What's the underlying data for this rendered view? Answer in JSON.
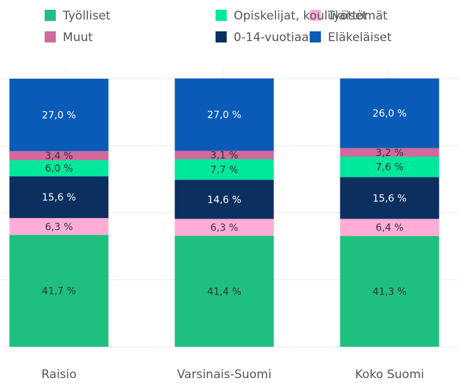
{
  "chart_data": {
    "type": "stacked_bar",
    "categories": [
      "Raisio",
      "Varsinais-Suomi",
      "Koko Suomi"
    ],
    "series": [
      {
        "name": "Työlliset",
        "color": "#1fc07f",
        "values": [
          41.7,
          41.4,
          41.3
        ],
        "value_labels": [
          "41,7 %",
          "41,4 %",
          "41,3 %"
        ]
      },
      {
        "name": "Työttömät",
        "color": "#ffadd6",
        "values": [
          6.3,
          6.3,
          6.4
        ],
        "value_labels": [
          "6,3 %",
          "6,3 %",
          "6,4 %"
        ]
      },
      {
        "name": "0-14-vuotiaat",
        "color": "#0b2f5f",
        "values": [
          15.6,
          14.6,
          15.6
        ],
        "value_labels": [
          "15,6 %",
          "14,6 %",
          "15,6 %"
        ]
      },
      {
        "name": "Opiskelijat, koululaiset",
        "color": "#00e89b",
        "values": [
          6.0,
          7.7,
          7.6
        ],
        "value_labels": [
          "6,0 %",
          "7,7 %",
          "7,6 %"
        ]
      },
      {
        "name": "Muut",
        "color": "#d2699c",
        "values": [
          3.4,
          3.1,
          3.2
        ],
        "value_labels": [
          "3,4 %",
          "3,1 %",
          "3,2 %"
        ]
      },
      {
        "name": "Eläkeläiset",
        "color": "#0a5bb8",
        "values": [
          27.0,
          27.0,
          26.0
        ],
        "value_labels": [
          "27,0 %",
          "27,0 %",
          "26,0 %"
        ]
      }
    ],
    "ylim": [
      0,
      100
    ],
    "yticks": [
      0,
      25,
      50,
      75,
      100
    ],
    "grid": true
  }
}
